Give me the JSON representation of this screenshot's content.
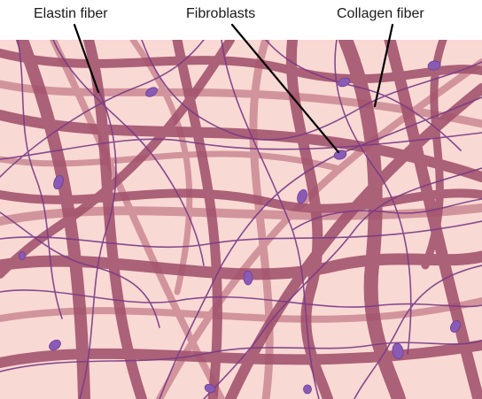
{
  "labels": {
    "elastin": "Elastin fiber",
    "fibroblasts": "Fibroblasts",
    "collagen": "Collagen fiber"
  },
  "colors": {
    "background": "#f9d9d3",
    "collagen": "#a1516c",
    "collagen_light": "#c9848f",
    "elastin": "#7a3a87",
    "fibroblast": "#8a5bb5",
    "leader": "#000000"
  }
}
